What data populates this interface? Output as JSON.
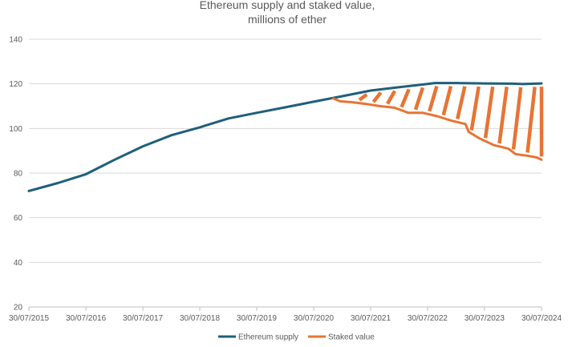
{
  "chart_data": {
    "type": "line",
    "title": "Ethereum supply and staked value,",
    "subtitle": "millions of ether",
    "xlabel": "",
    "ylabel": "",
    "ylim": [
      20,
      140
    ],
    "yticks": [
      20,
      40,
      60,
      80,
      100,
      120,
      140
    ],
    "xlim": [
      "2015-07-30",
      "2024-07-30"
    ],
    "xticks": [
      "30/07/2015",
      "30/07/2016",
      "30/07/2017",
      "30/07/2018",
      "30/07/2019",
      "30/07/2020",
      "30/07/2021",
      "30/07/2022",
      "30/07/2023",
      "30/07/2024"
    ],
    "grid": "horizontal",
    "legend_position": "bottom",
    "colors": {
      "supply": "#1f5f7a",
      "staked": "#e87433",
      "grid": "#d9d9d9",
      "axis": "#bfbfbf",
      "text": "#595959"
    },
    "series": [
      {
        "name": "Ethereum supply",
        "points": [
          [
            "2015-07-30",
            72.0
          ],
          [
            "2016-01-30",
            75.5
          ],
          [
            "2016-07-30",
            79.5
          ],
          [
            "2017-01-30",
            86.0
          ],
          [
            "2017-07-30",
            92.0
          ],
          [
            "2018-01-30",
            97.0
          ],
          [
            "2018-07-30",
            100.5
          ],
          [
            "2019-01-30",
            104.5
          ],
          [
            "2019-07-30",
            107.0
          ],
          [
            "2020-01-30",
            109.5
          ],
          [
            "2020-07-30",
            112.0
          ],
          [
            "2021-01-30",
            114.5
          ],
          [
            "2021-07-30",
            117.0
          ],
          [
            "2022-01-30",
            118.5
          ],
          [
            "2022-07-30",
            120.0
          ],
          [
            "2022-09-15",
            120.4
          ],
          [
            "2023-01-30",
            120.4
          ],
          [
            "2023-07-30",
            120.2
          ],
          [
            "2024-01-30",
            120.1
          ],
          [
            "2024-03-30",
            119.9
          ],
          [
            "2024-07-30",
            120.2
          ]
        ]
      },
      {
        "name": "Staked value",
        "points": [
          [
            "2020-12-01",
            113.5
          ],
          [
            "2021-01-15",
            112.2
          ],
          [
            "2021-03-30",
            111.8
          ],
          [
            "2021-06-30",
            111.0
          ],
          [
            "2021-09-30",
            110.0
          ],
          [
            "2021-12-30",
            109.3
          ],
          [
            "2022-03-30",
            107.0
          ],
          [
            "2022-06-30",
            107.0
          ],
          [
            "2022-09-30",
            105.5
          ],
          [
            "2022-12-30",
            103.5
          ],
          [
            "2023-03-30",
            102.0
          ],
          [
            "2023-04-20",
            98.5
          ],
          [
            "2023-06-30",
            95.5
          ],
          [
            "2023-09-30",
            92.5
          ],
          [
            "2023-12-30",
            91.0
          ],
          [
            "2024-02-15",
            88.5
          ],
          [
            "2024-04-30",
            87.8
          ],
          [
            "2024-06-30",
            87.0
          ],
          [
            "2024-07-30",
            86.0
          ]
        ]
      }
    ]
  }
}
